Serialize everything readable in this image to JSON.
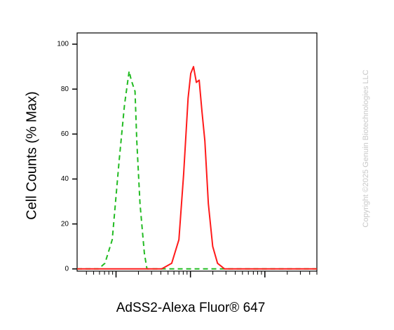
{
  "chart_data": {
    "type": "line",
    "ylabel": "Cell Counts (% Max)",
    "xlabel": "AdSS2-Alexa Fluor® 647",
    "watermark": "Copyright ©2025 Genuin Biotechnologies LLC",
    "xscale": "log",
    "xlim": [
      3,
      5000
    ],
    "xticks": [
      10,
      100,
      1000
    ],
    "xminor_ticks": [
      4,
      5,
      6,
      7,
      8,
      9,
      20,
      30,
      40,
      50,
      60,
      70,
      80,
      90,
      200,
      300,
      400,
      500,
      600,
      700,
      800,
      900,
      2000,
      3000,
      4000,
      5000
    ],
    "ylim": [
      -1,
      105
    ],
    "yticks": [
      0,
      20,
      40,
      60,
      80,
      100
    ],
    "series": [
      {
        "color": "#22bb22",
        "dash": true,
        "x": [
          3,
          5.8,
          7.1,
          8.9,
          11,
          13,
          15,
          16,
          18,
          19,
          21,
          24,
          26,
          5000
        ],
        "values": [
          0,
          0,
          2.5,
          13,
          48,
          73,
          88,
          84,
          79,
          57,
          29,
          7,
          0,
          0
        ]
      },
      {
        "color": "#ff1a1a",
        "dash": false,
        "x": [
          3,
          41,
          56,
          70,
          81,
          93,
          101,
          110,
          120,
          131,
          143,
          156,
          174,
          199,
          231,
          287,
          357,
          5000
        ],
        "values": [
          0,
          0,
          2.5,
          13,
          42,
          76,
          87,
          90,
          83,
          84,
          70,
          57,
          29,
          10,
          2.5,
          0,
          0,
          0
        ]
      }
    ]
  }
}
